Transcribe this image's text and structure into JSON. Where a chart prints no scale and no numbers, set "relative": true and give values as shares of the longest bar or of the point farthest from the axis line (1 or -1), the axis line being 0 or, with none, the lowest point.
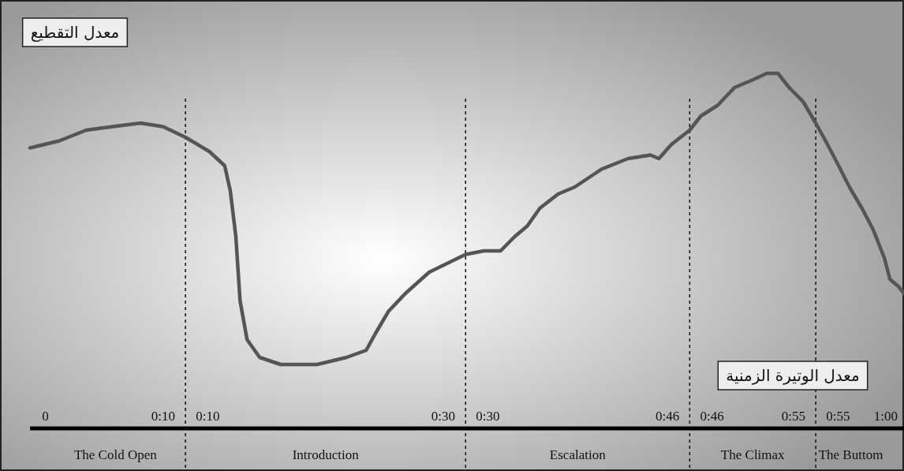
{
  "chart_data": {
    "type": "line",
    "relative": true,
    "ylabel": "معدل التقطيع",
    "xlabel": "معدل الوتيرة الزمنية",
    "xlim": [
      -1.1,
      61.3
    ],
    "grid": false,
    "marker": "none",
    "line_style": "solid",
    "series": [
      {
        "color": "#555555",
        "x": [
          -1.1,
          1.0,
          2.9,
          4.8,
          6.8,
          8.4,
          10,
          11.7,
          12.8,
          13.2,
          13.6,
          13.9,
          14.4,
          15.3,
          16.8,
          19.4,
          21.5,
          22.9,
          23.6,
          24.5,
          25.7,
          27.4,
          30,
          31.3,
          32.5,
          33.5,
          34.4,
          35.3,
          36.6,
          37.8,
          39.7,
          41.6,
          43.2,
          43.8,
          44.7,
          46,
          46.8,
          48.0,
          49.2,
          50.4,
          51.5,
          52.3,
          53.1,
          54.1,
          55,
          55.7,
          56.5,
          57.4,
          58.3,
          59.1,
          59.9,
          60.3,
          60.9,
          61.3
        ],
        "values": [
          0.79,
          0.81,
          0.84,
          0.85,
          0.86,
          0.85,
          0.82,
          0.78,
          0.74,
          0.67,
          0.54,
          0.36,
          0.25,
          0.2,
          0.18,
          0.18,
          0.2,
          0.22,
          0.27,
          0.33,
          0.38,
          0.44,
          0.49,
          0.5,
          0.5,
          0.54,
          0.57,
          0.62,
          0.66,
          0.68,
          0.73,
          0.76,
          0.77,
          0.76,
          0.8,
          0.84,
          0.88,
          0.91,
          0.96,
          0.98,
          1,
          1,
          0.96,
          0.92,
          0.86,
          0.81,
          0.75,
          0.68,
          0.62,
          0.56,
          0.48,
          0.42,
          0.4,
          0.38
        ]
      }
    ],
    "ref_lines": [
      {
        "axis": "x",
        "value": 10,
        "line_style": "dashed"
      },
      {
        "axis": "x",
        "value": 30,
        "line_style": "dashed"
      },
      {
        "axis": "x",
        "value": 46,
        "line_style": "dashed"
      },
      {
        "axis": "x",
        "value": 55,
        "line_style": "dashed"
      }
    ],
    "annotations": [
      "The Cold Open",
      "Introduction",
      "Escalation",
      "The Climax",
      "The Buttom"
    ],
    "xticks": [
      {
        "value": 0,
        "label": "0"
      },
      {
        "value": 10,
        "label": "0:10 0:10"
      },
      {
        "value": 30,
        "label": "0:30 0:30"
      },
      {
        "value": 46,
        "label": "0:46 0:46"
      },
      {
        "value": 55,
        "label": "0:55 0:55"
      },
      {
        "value": 60,
        "label": "1:00"
      }
    ]
  }
}
